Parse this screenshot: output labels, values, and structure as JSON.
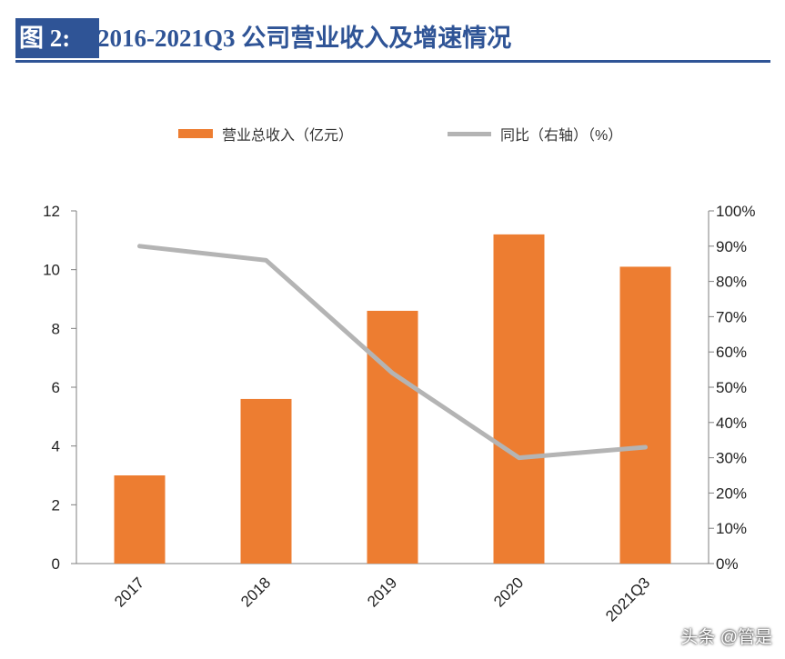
{
  "header": {
    "figure_label": "图 2:",
    "title": "2016-2021Q3 公司营业收入及增速情况"
  },
  "chart_data": {
    "type": "bar",
    "categories": [
      "2017",
      "2018",
      "2019",
      "2020",
      "2021Q3"
    ],
    "series": [
      {
        "name": "营业总收入（亿元）",
        "type": "bar",
        "axis": "left",
        "color": "#ed7d31",
        "values": [
          3.0,
          5.6,
          8.6,
          11.2,
          10.1
        ]
      },
      {
        "name": "同比（右轴）（%）",
        "type": "line",
        "axis": "right",
        "color": "#b4b4b4",
        "values": [
          90,
          86,
          54,
          30,
          33
        ]
      }
    ],
    "y_left": {
      "min": 0,
      "max": 12,
      "ticks": [
        "0",
        "2",
        "4",
        "6",
        "8",
        "10",
        "12"
      ]
    },
    "y_right": {
      "min": 0,
      "max": 100,
      "ticks": [
        "0%",
        "10%",
        "20%",
        "30%",
        "40%",
        "50%",
        "60%",
        "70%",
        "80%",
        "90%",
        "100%"
      ]
    },
    "legend_position": "top",
    "grid": false
  },
  "watermark": "头条 @管是"
}
